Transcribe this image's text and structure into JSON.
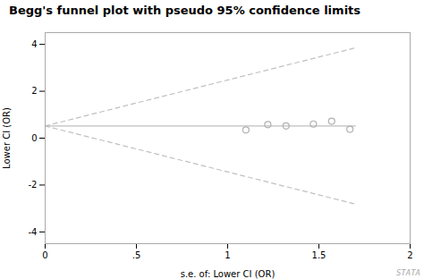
{
  "chart_data": {
    "type": "scatter",
    "title": "Begg's funnel plot with pseudo 95% confidence limits",
    "x_label": "s.e. of: Lower CI (OR)",
    "y_label": "Lower CI (OR)",
    "xlim": [
      0,
      2
    ],
    "ylim": [
      -4.5,
      4.5
    ],
    "xticks": [
      0,
      {
        "value": 0.5,
        "label": ".5"
      },
      1,
      1.5,
      2
    ],
    "yticks": [
      -4,
      -2,
      0,
      2,
      4
    ],
    "grid": false,
    "annotations": [
      "STATA"
    ],
    "series": [
      {
        "type": "line",
        "line_style": "dashed",
        "color": "#c0c0c0",
        "x": [
          0,
          1.7
        ],
        "values": [
          0.52,
          3.852
        ]
      },
      {
        "type": "line",
        "line_style": "dashed",
        "color": "#c0c0c0",
        "x": [
          0,
          1.7
        ],
        "values": [
          0.52,
          -2.812
        ]
      },
      {
        "type": "line",
        "line_style": "solid",
        "color": "#c0c0c0",
        "x": [
          0,
          1.7
        ],
        "values": [
          0.52,
          0.52
        ]
      },
      {
        "type": "scatter",
        "marker": "open circle",
        "color": "#b0b0b0",
        "x": [
          1.1,
          1.22,
          1.32,
          1.47,
          1.57,
          1.67
        ],
        "values": [
          0.35,
          0.58,
          0.52,
          0.6,
          0.72,
          0.38
        ]
      }
    ]
  }
}
